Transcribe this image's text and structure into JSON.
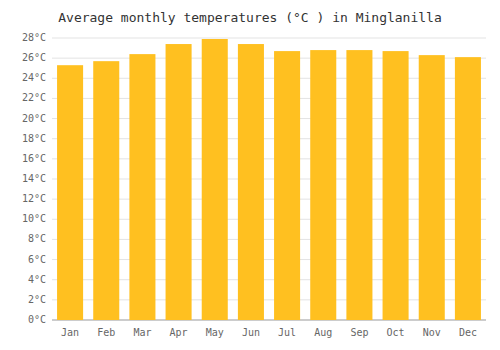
{
  "chart_data": {
    "type": "bar",
    "title": "Average monthly temperatures (°C ) in Minglanilla",
    "categories": [
      "Jan",
      "Feb",
      "Mar",
      "Apr",
      "May",
      "Jun",
      "Jul",
      "Aug",
      "Sep",
      "Oct",
      "Nov",
      "Dec"
    ],
    "values": [
      25.3,
      25.7,
      26.4,
      27.4,
      27.9,
      27.4,
      26.7,
      26.8,
      26.8,
      26.7,
      26.3,
      26.1
    ],
    "color": "#FFC020",
    "ylim": [
      0,
      28
    ],
    "yticks": [
      {
        "value": 0,
        "label": "0°C"
      },
      {
        "value": 2,
        "label": "2°C"
      },
      {
        "value": 4,
        "label": "4°C"
      },
      {
        "value": 6,
        "label": "6°C"
      },
      {
        "value": 8,
        "label": "8°C"
      },
      {
        "value": 10,
        "label": "10°C"
      },
      {
        "value": 12,
        "label": "12°C"
      },
      {
        "value": 14,
        "label": "14°C"
      },
      {
        "value": 16,
        "label": "16°C"
      },
      {
        "value": 18,
        "label": "18°C"
      },
      {
        "value": 20,
        "label": "20°C"
      },
      {
        "value": 22,
        "label": "22°C"
      },
      {
        "value": 24,
        "label": "24°C"
      },
      {
        "value": 26,
        "label": "26°C"
      },
      {
        "value": 28,
        "label": "28°C"
      }
    ],
    "grid": true
  }
}
